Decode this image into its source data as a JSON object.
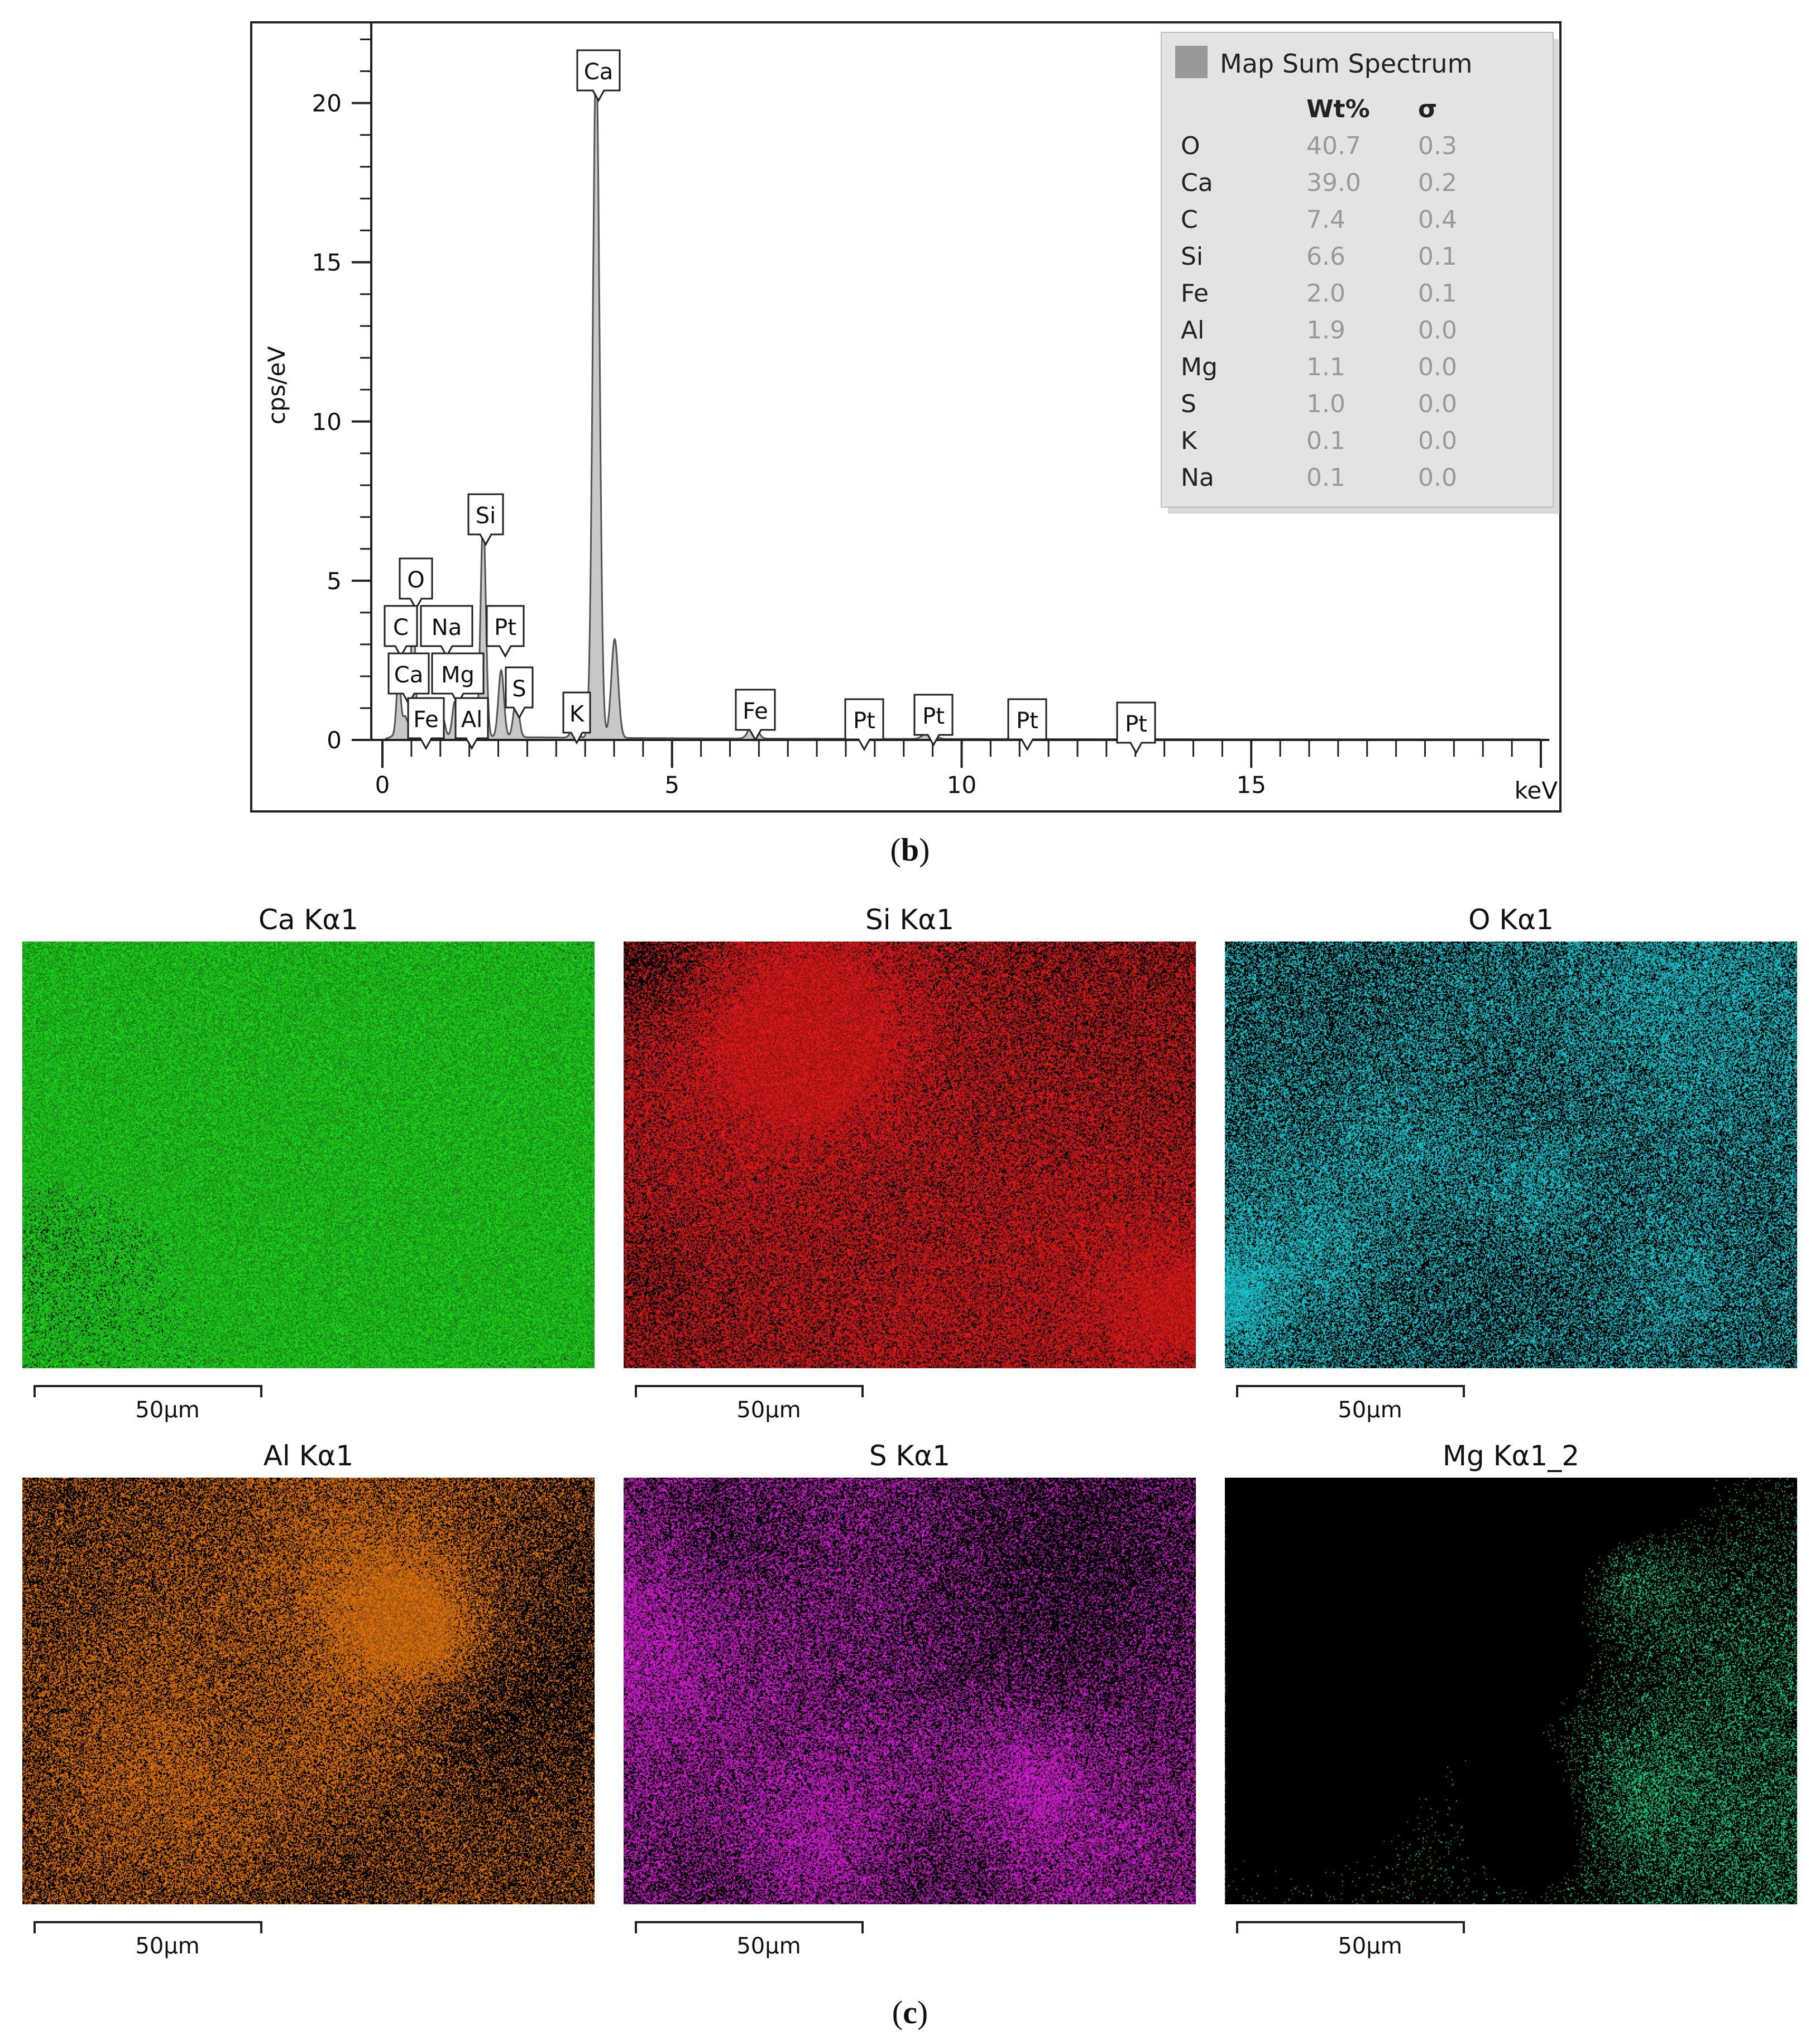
{
  "chart_data": {
    "type": "line",
    "ylabel": "cps/eV",
    "x_unit_label": "keV",
    "xlim": [
      0,
      20
    ],
    "ylim": [
      0,
      22.5
    ],
    "x_ticks": [
      "0",
      "5",
      "10",
      "15"
    ],
    "y_ticks": [
      "0",
      "5",
      "10",
      "15",
      "20"
    ],
    "fill_color": "#c8c8c8",
    "line_color": "#555555",
    "peaks": [
      {
        "x": 0.28,
        "y": 1.9
      },
      {
        "x": 0.39,
        "y": 0.6
      },
      {
        "x": 0.53,
        "y": 4.1
      },
      {
        "x": 0.7,
        "y": 0.5
      },
      {
        "x": 1.04,
        "y": 0.6
      },
      {
        "x": 1.25,
        "y": 1.1
      },
      {
        "x": 1.49,
        "y": 1.2
      },
      {
        "x": 1.74,
        "y": 6.9
      },
      {
        "x": 2.05,
        "y": 2.1
      },
      {
        "x": 2.31,
        "y": 1.2
      },
      {
        "x": 3.31,
        "y": 0.35
      },
      {
        "x": 3.69,
        "y": 21.5
      },
      {
        "x": 4.01,
        "y": 3.1
      },
      {
        "x": 6.4,
        "y": 0.5
      },
      {
        "x": 9.44,
        "y": 0.25
      },
      {
        "x": 11.07,
        "y": 0.12
      }
    ],
    "peak_labels": [
      {
        "label": "Ca",
        "x": 3.69,
        "y": 21.5
      },
      {
        "label": "Si",
        "x": 1.74,
        "y": 6.9
      },
      {
        "label": "O",
        "x": 0.53,
        "y": 4.1
      },
      {
        "label": "C",
        "x": 0.28,
        "y": 1.9
      },
      {
        "label": "Na",
        "x": 1.04,
        "y": 0.6
      },
      {
        "label": "Pt",
        "x": 2.05,
        "y": 2.1
      },
      {
        "label": "Ca",
        "x": 0.34,
        "y": 0.6
      },
      {
        "label": "Mg",
        "x": 1.25,
        "y": 1.1
      },
      {
        "label": "S",
        "x": 2.31,
        "y": 1.2
      },
      {
        "label": "Fe",
        "x": 0.7,
        "y": 0.5
      },
      {
        "label": "Al",
        "x": 1.49,
        "y": 1.2
      },
      {
        "label": "K",
        "x": 3.31,
        "y": 0.35
      },
      {
        "label": "Fe",
        "x": 6.4,
        "y": 0.5
      },
      {
        "label": "Pt",
        "x": 8.27,
        "y": 0.1
      },
      {
        "label": "Pt",
        "x": 9.44,
        "y": 0.25
      },
      {
        "label": "Pt",
        "x": 11.07,
        "y": 0.12
      },
      {
        "label": "Pt",
        "x": 12.94,
        "y": 0.05
      }
    ],
    "legend": {
      "title": "Map Sum Spectrum",
      "swatch_color": "#999999",
      "col_headers": [
        "Wt%",
        "σ"
      ],
      "rows": [
        {
          "element": "O",
          "wt": "40.7",
          "sigma": "0.3"
        },
        {
          "element": "Ca",
          "wt": "39.0",
          "sigma": "0.2"
        },
        {
          "element": "C",
          "wt": "7.4",
          "sigma": "0.4"
        },
        {
          "element": "Si",
          "wt": "6.6",
          "sigma": "0.1"
        },
        {
          "element": "Fe",
          "wt": "2.0",
          "sigma": "0.1"
        },
        {
          "element": "Al",
          "wt": "1.9",
          "sigma": "0.0"
        },
        {
          "element": "Mg",
          "wt": "1.1",
          "sigma": "0.0"
        },
        {
          "element": "S",
          "wt": "1.0",
          "sigma": "0.0"
        },
        {
          "element": "K",
          "wt": "0.1",
          "sigma": "0.0"
        },
        {
          "element": "Na",
          "wt": "0.1",
          "sigma": "0.0"
        }
      ]
    }
  },
  "captions": {
    "b": "b",
    "c": "c"
  },
  "maps": [
    {
      "title": "Ca Kα1",
      "color": "#21e021",
      "density": 0.92,
      "scale": "50µm"
    },
    {
      "title": "Si Kα1",
      "color": "#ee1c1c",
      "density": 0.62,
      "scale": "50µm"
    },
    {
      "title": "O Kα1",
      "color": "#1fd7e0",
      "density": 0.48,
      "scale": "50µm"
    },
    {
      "title": "Al Kα1",
      "color": "#f07d10",
      "density": 0.45,
      "scale": "50µm"
    },
    {
      "title": "S Kα1",
      "color": "#ea1ee8",
      "density": 0.5,
      "scale": "50µm"
    },
    {
      "title": "Mg Kα1_2",
      "color": "#1ee08a",
      "density": 0.03,
      "scale": "50µm"
    }
  ]
}
